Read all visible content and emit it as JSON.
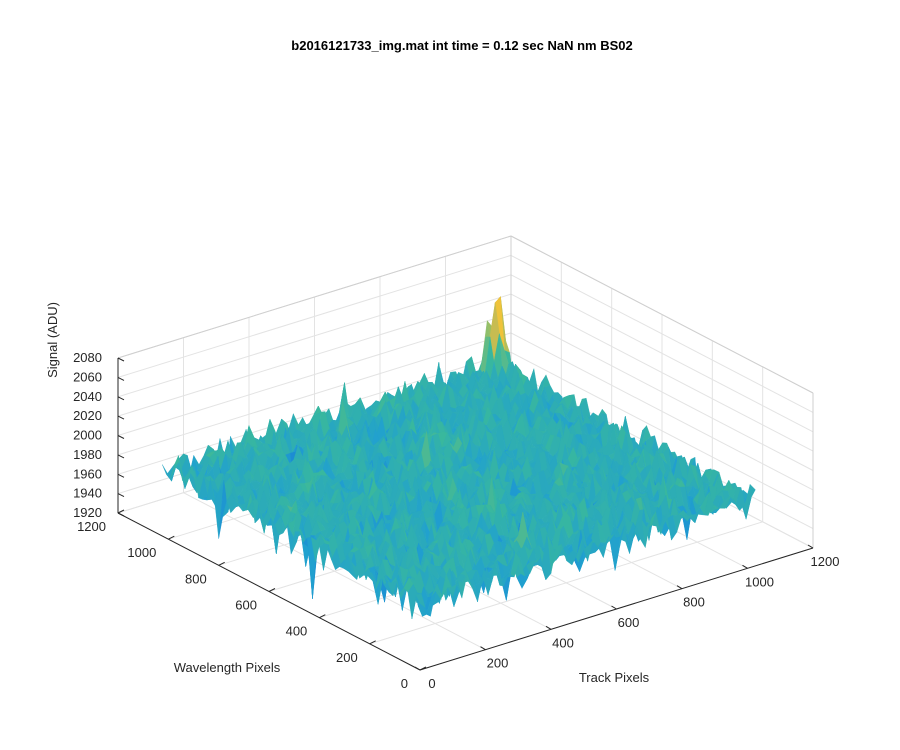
{
  "chart_data": {
    "type": "surface",
    "title": "b2016121733_img.mat int time = 0.12 sec  NaN nm BS02",
    "xlabel": "Track Pixels",
    "ylabel": "Wavelength Pixels",
    "zlabel": "Signal (ADU)",
    "xlim": [
      0,
      1200
    ],
    "ylim": [
      0,
      1200
    ],
    "zlim": [
      1920,
      2080
    ],
    "xticks": [
      "0",
      "200",
      "400",
      "600",
      "800",
      "1000",
      "1200"
    ],
    "yticks": [
      "0",
      "200",
      "400",
      "600",
      "800",
      "1000",
      "1200"
    ],
    "zticks": [
      "1920",
      "1940",
      "1960",
      "1980",
      "2000",
      "2020",
      "2040",
      "2060",
      "2080"
    ],
    "grid": true,
    "colormap": "parula",
    "data_extent": {
      "x": [
        0,
        1024
      ],
      "y": [
        0,
        1024
      ]
    },
    "signal_summary": {
      "mean": 1990,
      "approx_min": 1925,
      "approx_max": 2075,
      "peak_near": {
        "x": 1000,
        "y": 1000,
        "z": 2075
      }
    }
  }
}
